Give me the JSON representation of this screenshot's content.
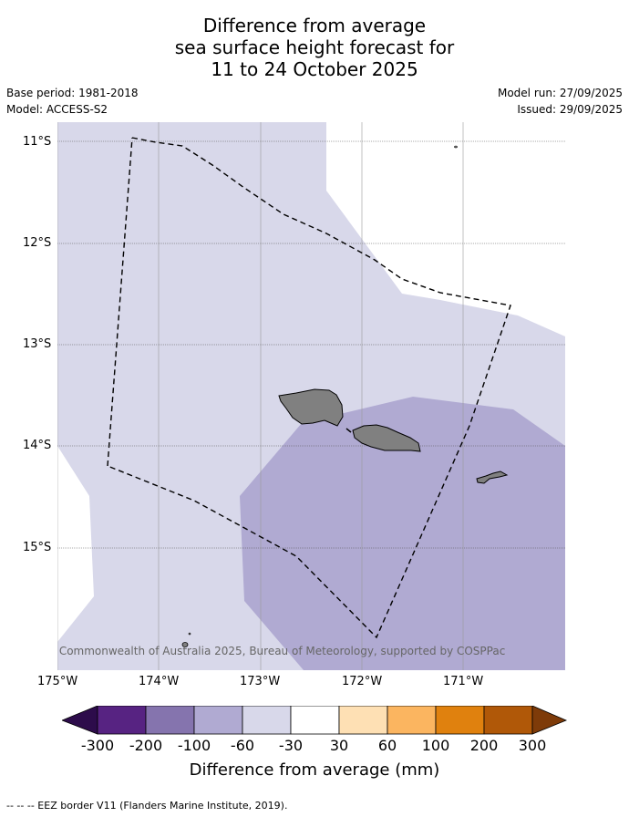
{
  "header": {
    "title_lines": [
      "Difference from average",
      "sea surface height forecast for",
      "11 to 24 October 2025"
    ],
    "base_period": "Base period: 1981-2018",
    "model": "Model: ACCESS-S2",
    "model_run": "Model run: 27/09/2025",
    "issued": "Issued: 29/09/2025"
  },
  "map": {
    "lat_labels": [
      "11°S",
      "12°S",
      "13°S",
      "14°S",
      "15°S"
    ],
    "lon_labels": [
      "175°W",
      "174°W",
      "173°W",
      "172°W",
      "171°W"
    ],
    "credit": "© Commonwealth of Australia 2025, Bureau of Meteorology, supported by COSPPac",
    "colors": {
      "ocean_light": "#d8d8ea",
      "ocean_mid": "#b0aad2",
      "land": "#808080"
    }
  },
  "colorbar": {
    "ticks": [
      "-300",
      "-200",
      "-100",
      "-60",
      "-30",
      "30",
      "60",
      "100",
      "200",
      "300"
    ],
    "colors": [
      "#2d0c4b",
      "#572382",
      "#8574ae",
      "#b0aad2",
      "#d8d8ea",
      "#ffffff",
      "#fee0b4",
      "#fbb560",
      "#e0810e",
      "#b05808",
      "#7e3b09"
    ],
    "label": "Difference from average (mm)"
  },
  "footer": {
    "legend_text": "--  --  -- EEZ border V11 (Flanders Marine Institute, 2019)."
  }
}
